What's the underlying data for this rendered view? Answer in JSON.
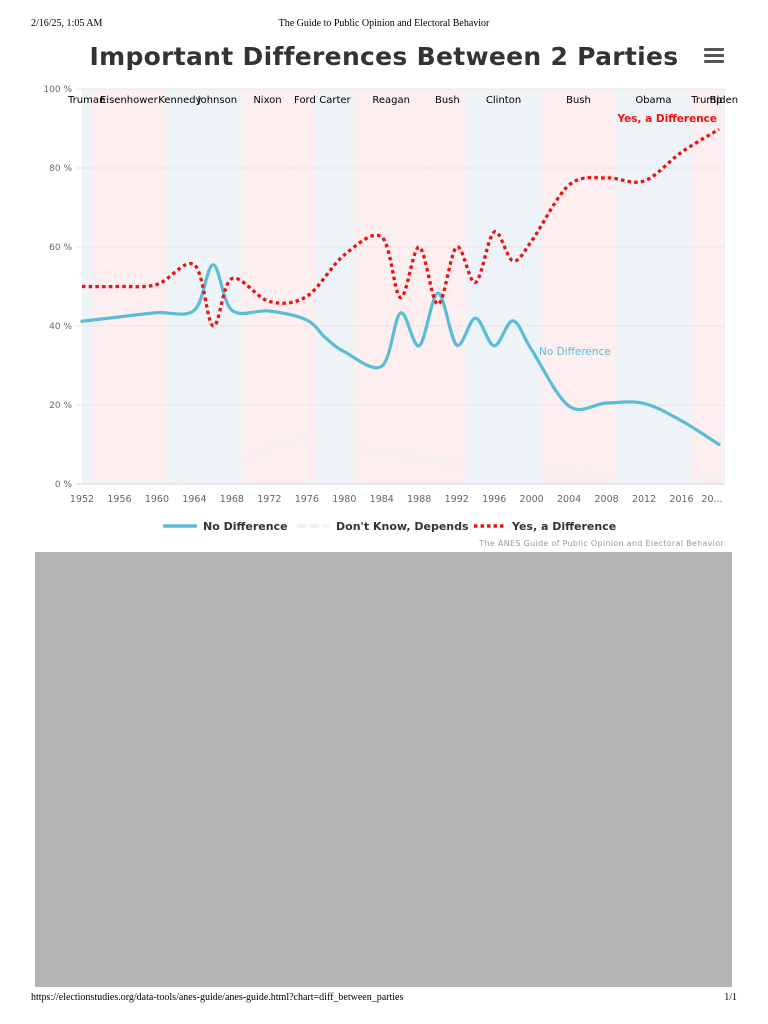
{
  "page_header": {
    "date": "2/16/25, 1:05 AM",
    "title": "The Guide to Public Opinion and Electoral Behavior"
  },
  "page_footer": {
    "url": "https://electionstudies.org/data-tools/anes-guide/anes-guide.html?chart=diff_between_parties",
    "page": "1/1"
  },
  "menu": {
    "icon": "hamburger-menu-icon"
  },
  "colors": {
    "no_difference": "#5bbcd6",
    "dont_know": "#f2f2f2",
    "yes_difference": "#ee1111",
    "republican_band": "#fdeef0",
    "democrat_band": "#eef3f7",
    "grid": "#e6e6e6",
    "axis_text": "#666666"
  },
  "chart_data": {
    "type": "line",
    "title": "Important Differences Between 2 Parties",
    "credits": "The ANES Guide of Public Opinion and Electoral Behavior",
    "xlim": [
      1952,
      2020
    ],
    "ylim": [
      0,
      100
    ],
    "x_ticks": [
      "1952",
      "1956",
      "1960",
      "1964",
      "1968",
      "1972",
      "1976",
      "1980",
      "1984",
      "1988",
      "1992",
      "1996",
      "2000",
      "2004",
      "2008",
      "2012",
      "2016",
      "20..."
    ],
    "y_ticks": [
      "0 %",
      "20 %",
      "40 %",
      "60 %",
      "80 %",
      "100 %"
    ],
    "series": [
      {
        "name": "No Difference",
        "label": "No Difference",
        "style": "solid",
        "points": [
          [
            1952,
            41.2
          ],
          [
            1956,
            42.3
          ],
          [
            1960,
            43.4
          ],
          [
            1964,
            44.0
          ],
          [
            1966,
            55.5
          ],
          [
            1968,
            44.0
          ],
          [
            1972,
            43.8
          ],
          [
            1976,
            41.5
          ],
          [
            1978,
            37.0
          ],
          [
            1980,
            33.5
          ],
          [
            1984,
            29.8
          ],
          [
            1986,
            43.3
          ],
          [
            1988,
            35.0
          ],
          [
            1990,
            48.3
          ],
          [
            1992,
            35.2
          ],
          [
            1994,
            42.0
          ],
          [
            1996,
            35.0
          ],
          [
            1998,
            41.3
          ],
          [
            2000,
            34.0
          ],
          [
            2004,
            19.7
          ],
          [
            2008,
            20.5
          ],
          [
            2012,
            20.4
          ],
          [
            2016,
            16.0
          ],
          [
            2020,
            10.0
          ]
        ]
      },
      {
        "name": "Don't Know, Depends",
        "label": "",
        "style": "dashed",
        "points": [
          [
            1952,
            0.5
          ],
          [
            1956,
            0.5
          ],
          [
            1960,
            0.5
          ],
          [
            1964,
            0.8
          ],
          [
            1968,
            4.5
          ],
          [
            1972,
            9.5
          ],
          [
            1976,
            11.5
          ],
          [
            1980,
            10.0
          ],
          [
            1984,
            8.5
          ],
          [
            1988,
            6.5
          ],
          [
            1992,
            5.0
          ],
          [
            1996,
            4.8
          ],
          [
            2000,
            3.5
          ],
          [
            2004,
            3.0
          ],
          [
            2008,
            2.5
          ],
          [
            2012,
            2.5
          ],
          [
            2016,
            2.0
          ],
          [
            2020,
            1.5
          ]
        ]
      },
      {
        "name": "Yes, a Difference",
        "label": "Yes, a Difference",
        "style": "dotted",
        "points": [
          [
            1952,
            50.0
          ],
          [
            1956,
            50.0
          ],
          [
            1960,
            50.5
          ],
          [
            1964,
            55.5
          ],
          [
            1966,
            40.0
          ],
          [
            1968,
            52.0
          ],
          [
            1972,
            46.2
          ],
          [
            1976,
            47.5
          ],
          [
            1980,
            58.0
          ],
          [
            1984,
            62.5
          ],
          [
            1986,
            47.2
          ],
          [
            1988,
            60.0
          ],
          [
            1990,
            45.5
          ],
          [
            1992,
            60.0
          ],
          [
            1994,
            51.0
          ],
          [
            1996,
            63.8
          ],
          [
            1998,
            56.5
          ],
          [
            2000,
            61.5
          ],
          [
            2004,
            75.7
          ],
          [
            2008,
            77.5
          ],
          [
            2012,
            76.7
          ],
          [
            2016,
            84.0
          ],
          [
            2020,
            89.8
          ]
        ]
      }
    ],
    "presidents": [
      {
        "name": "Truman",
        "start": 1952,
        "end": 1953,
        "party": "D"
      },
      {
        "name": "Eisenhower",
        "start": 1953,
        "end": 1961,
        "party": "R"
      },
      {
        "name": "Kennedy",
        "start": 1961,
        "end": 1963.9,
        "party": "D"
      },
      {
        "name": "Johnson",
        "start": 1963.9,
        "end": 1969,
        "party": "D"
      },
      {
        "name": "Nixon",
        "start": 1969,
        "end": 1974.6,
        "party": "R"
      },
      {
        "name": "Ford",
        "start": 1974.6,
        "end": 1977,
        "party": "R"
      },
      {
        "name": "Carter",
        "start": 1977,
        "end": 1981,
        "party": "D"
      },
      {
        "name": "Reagan",
        "start": 1981,
        "end": 1989,
        "party": "R"
      },
      {
        "name": "Bush",
        "start": 1989,
        "end": 1993,
        "party": "R"
      },
      {
        "name": "Clinton",
        "start": 1993,
        "end": 2001,
        "party": "D"
      },
      {
        "name": "Bush",
        "start": 2001,
        "end": 2009,
        "party": "R"
      },
      {
        "name": "Obama",
        "start": 2009,
        "end": 2017,
        "party": "D"
      },
      {
        "name": "Trump",
        "start": 2017,
        "end": 2020.4,
        "party": "R"
      },
      {
        "name": "Biden",
        "start": 2020.4,
        "end": 2021,
        "party": "D"
      }
    ],
    "legend": [
      {
        "name": "No Difference",
        "style": "solid"
      },
      {
        "name": "Don't Know, Depends",
        "style": "dashed"
      },
      {
        "name": "Yes, a Difference",
        "style": "dotted"
      }
    ]
  }
}
